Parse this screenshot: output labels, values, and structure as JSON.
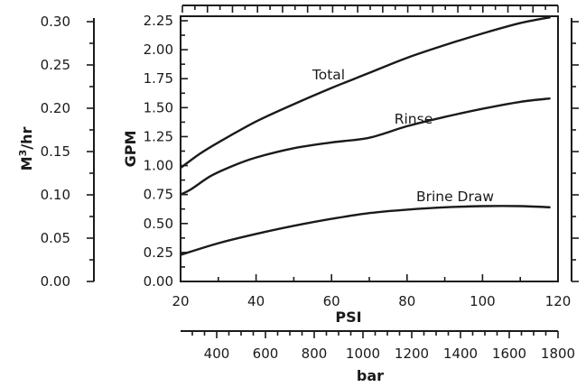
{
  "chart_data": {
    "type": "line",
    "x_axis": {
      "label": "PSI",
      "range": [
        20,
        120
      ],
      "ticks": [
        "20",
        "40",
        "60",
        "80",
        "100",
        "120"
      ]
    },
    "y_axis": {
      "label": "GPM",
      "range": [
        0,
        2.25
      ],
      "ticks": [
        "0.00",
        "0.25",
        "0.50",
        "0.75",
        "1.00",
        "1.25",
        "1.50",
        "1.75",
        "2.00",
        "2.25"
      ]
    },
    "y2_axis": {
      "label": "M3/hr",
      "range": [
        0,
        0.3
      ],
      "ticks": [
        "0.00",
        "0.05",
        "0.10",
        "0.15",
        "0.20",
        "0.25",
        "0.30"
      ]
    },
    "x2_axis": {
      "label": "bar",
      "ticks": [
        "400",
        "600",
        "800",
        "1000",
        "1200",
        "1400",
        "1600",
        "1800"
      ]
    },
    "series": [
      {
        "name": "Total",
        "x": [
          20,
          25,
          30,
          40,
          50,
          60,
          70,
          80,
          90,
          100,
          110,
          118
        ],
        "values": [
          0.98,
          1.1,
          1.2,
          1.38,
          1.53,
          1.67,
          1.8,
          1.93,
          2.04,
          2.14,
          2.23,
          2.28
        ]
      },
      {
        "name": "Rinse",
        "x": [
          20,
          23,
          28,
          34,
          40,
          50,
          60,
          70,
          80,
          90,
          100,
          110,
          118
        ],
        "values": [
          0.75,
          0.8,
          0.91,
          1.0,
          1.07,
          1.15,
          1.2,
          1.24,
          1.34,
          1.42,
          1.49,
          1.55,
          1.58
        ]
      },
      {
        "name": "Brine Draw",
        "x": [
          20,
          30,
          40,
          50,
          60,
          70,
          80,
          90,
          100,
          110,
          118
        ],
        "values": [
          0.23,
          0.33,
          0.41,
          0.48,
          0.54,
          0.59,
          0.62,
          0.64,
          0.65,
          0.65,
          0.64
        ]
      }
    ]
  }
}
